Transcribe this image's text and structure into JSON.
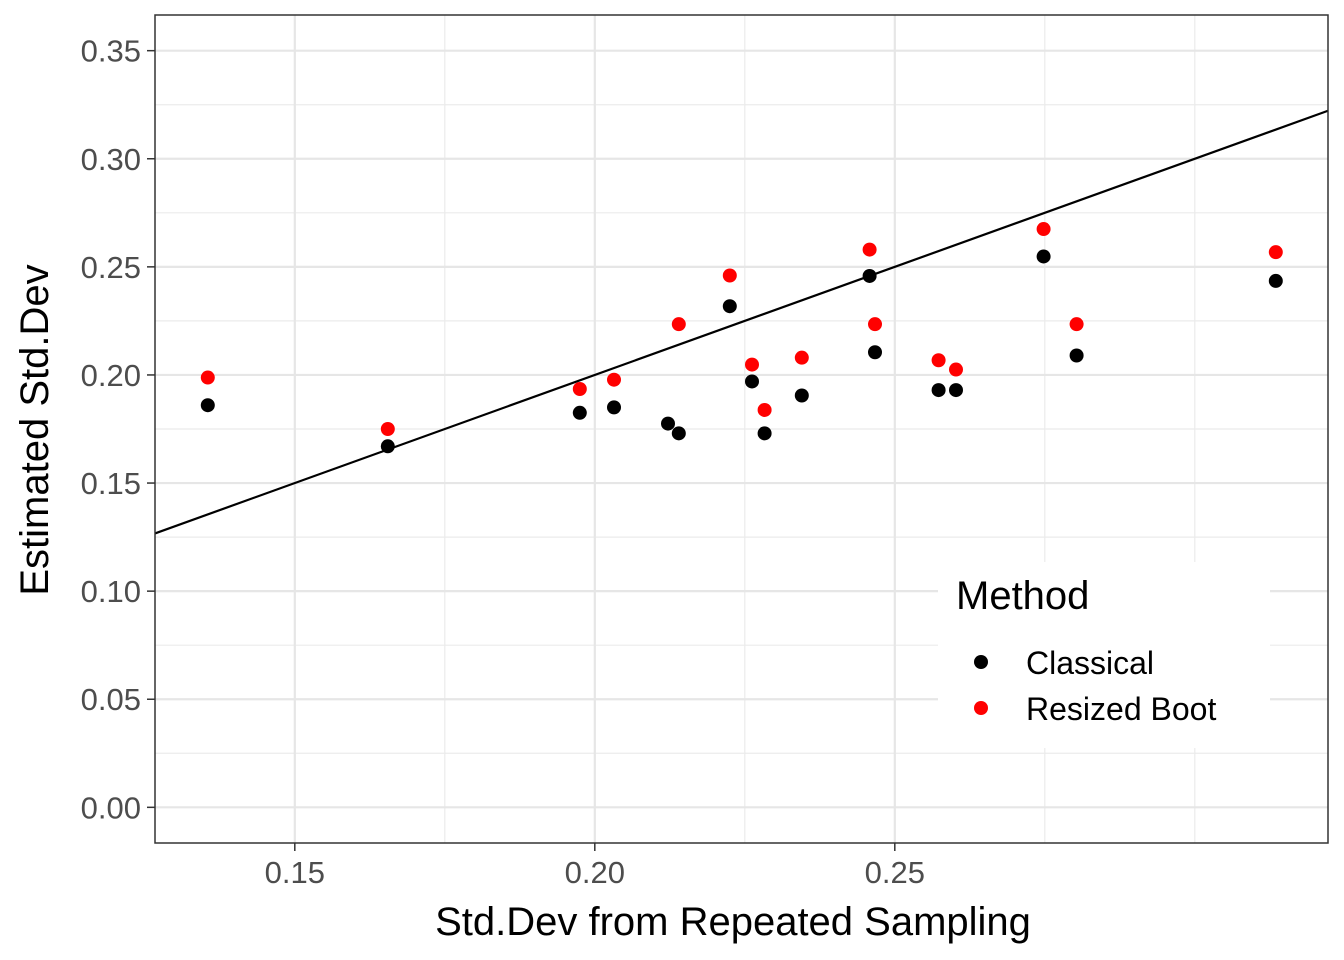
{
  "chart_data": {
    "type": "scatter",
    "xlabel": "Std.Dev from Repeated Sampling",
    "ylabel": "Estimated Std.Dev",
    "xlim": [
      0.1267,
      0.3222
    ],
    "ylim": [
      -0.0165,
      0.3665
    ],
    "x_ticks": [
      0.15,
      0.2,
      0.25
    ],
    "x_tick_labels": [
      "0.15",
      "0.20",
      "0.25"
    ],
    "x_minor_ticks": [
      0.175,
      0.225,
      0.275,
      0.3
    ],
    "y_ticks": [
      0.0,
      0.05,
      0.1,
      0.15,
      0.2,
      0.25,
      0.3,
      0.35
    ],
    "y_tick_labels": [
      "0.00",
      "0.05",
      "0.10",
      "0.15",
      "0.20",
      "0.25",
      "0.30",
      "0.35"
    ],
    "y_minor_ticks": [
      0.025,
      0.075,
      0.125,
      0.175,
      0.225,
      0.275,
      0.325
    ],
    "grid": true,
    "reference_line": {
      "slope": 1,
      "intercept": 0
    },
    "legend": {
      "title": "Method",
      "placement": "bottom-right",
      "entries": [
        "Classical",
        "Resized Boot"
      ]
    },
    "series": [
      {
        "name": "Classical",
        "color": "#000000",
        "points": [
          [
            0.1355,
            0.186
          ],
          [
            0.1655,
            0.167
          ],
          [
            0.1975,
            0.1825
          ],
          [
            0.2032,
            0.185
          ],
          [
            0.2122,
            0.1775
          ],
          [
            0.214,
            0.173
          ],
          [
            0.2225,
            0.2318
          ],
          [
            0.2262,
            0.197
          ],
          [
            0.2283,
            0.173
          ],
          [
            0.2345,
            0.1905
          ],
          [
            0.2458,
            0.2458
          ],
          [
            0.2467,
            0.2105
          ],
          [
            0.2573,
            0.193
          ],
          [
            0.2602,
            0.193
          ],
          [
            0.2748,
            0.2548
          ],
          [
            0.2803,
            0.209
          ],
          [
            0.3135,
            0.2435
          ]
        ]
      },
      {
        "name": "Resized Boot",
        "color": "#ff0000",
        "points": [
          [
            0.1355,
            0.1988
          ],
          [
            0.1655,
            0.175
          ],
          [
            0.1975,
            0.1935
          ],
          [
            0.2032,
            0.1978
          ],
          [
            0.214,
            0.2235
          ],
          [
            0.2225,
            0.246
          ],
          [
            0.2262,
            0.2048
          ],
          [
            0.2283,
            0.1838
          ],
          [
            0.2345,
            0.208
          ],
          [
            0.2458,
            0.258
          ],
          [
            0.2467,
            0.2235
          ],
          [
            0.2573,
            0.2068
          ],
          [
            0.2602,
            0.2025
          ],
          [
            0.2748,
            0.2675
          ],
          [
            0.2803,
            0.2235
          ],
          [
            0.3135,
            0.2568
          ]
        ]
      }
    ]
  }
}
